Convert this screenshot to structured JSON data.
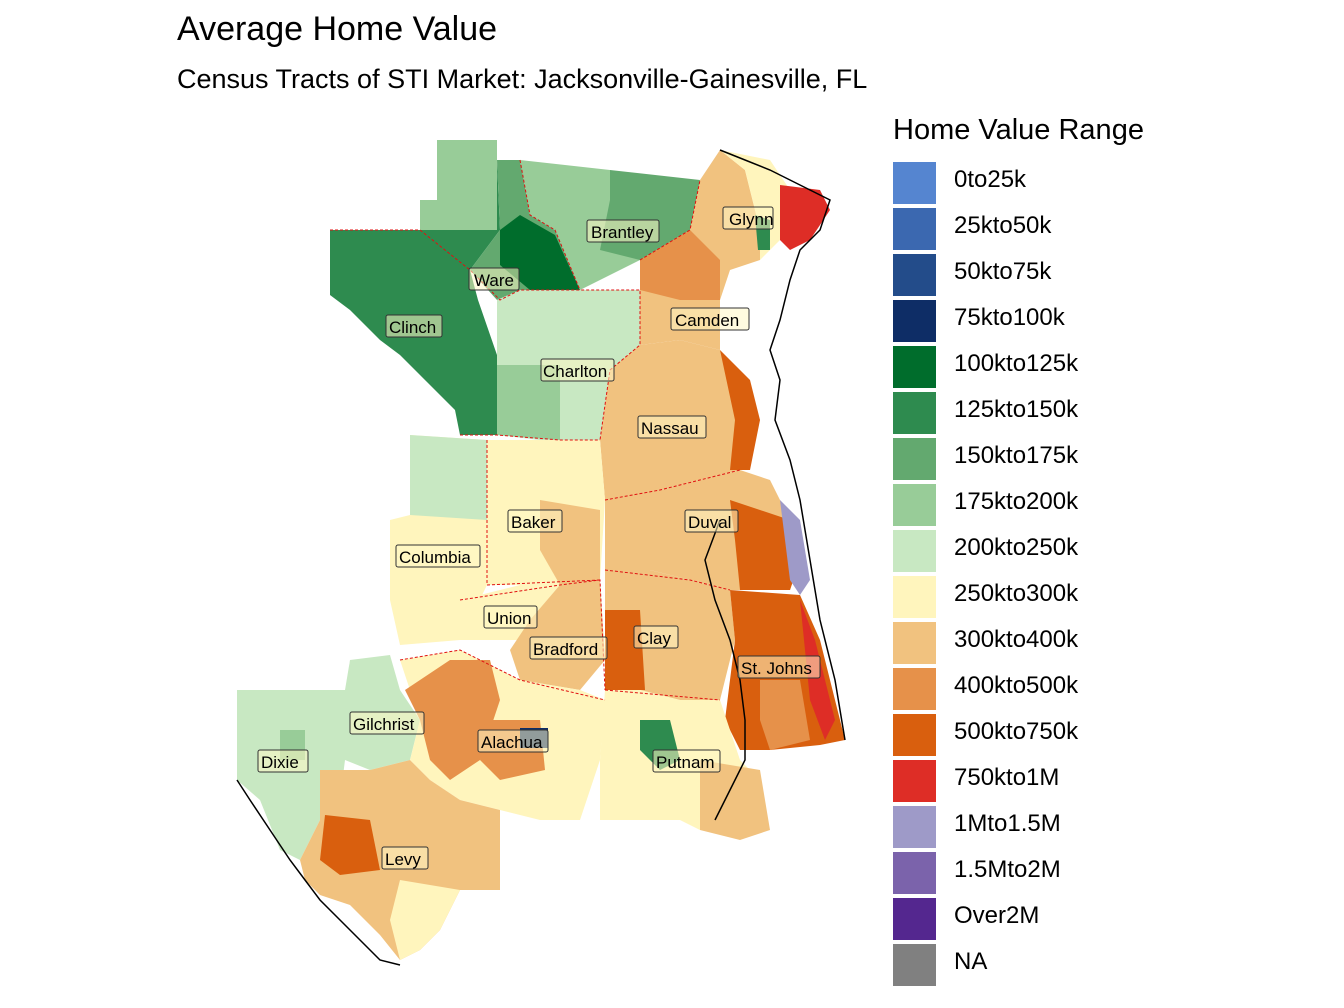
{
  "title": "Average Home Value",
  "subtitle": "Census Tracts of STI Market: Jacksonville-Gainesville, FL",
  "legend": {
    "title": "Home Value Range",
    "items": [
      {
        "label": "0to25k",
        "color": "#5585d0"
      },
      {
        "label": "25kto50k",
        "color": "#3b68b0"
      },
      {
        "label": "50kto75k",
        "color": "#234c8a"
      },
      {
        "label": "75kto100k",
        "color": "#0e2d66"
      },
      {
        "label": "100kto125k",
        "color": "#006d2c"
      },
      {
        "label": "125kto150k",
        "color": "#2e8b4f"
      },
      {
        "label": "150kto175k",
        "color": "#63a96f"
      },
      {
        "label": "175kto200k",
        "color": "#98cc98"
      },
      {
        "label": "200kto250k",
        "color": "#c8e8c2"
      },
      {
        "label": "250kto300k",
        "color": "#fff5bd"
      },
      {
        "label": "300kto400k",
        "color": "#f1c27f"
      },
      {
        "label": "400kto500k",
        "color": "#e6914a"
      },
      {
        "label": "500kto750k",
        "color": "#d95f0e"
      },
      {
        "label": "750kto1M",
        "color": "#de2d26"
      },
      {
        "label": "1Mto1.5M",
        "color": "#9e9ac8"
      },
      {
        "label": "1.5Mto2M",
        "color": "#7b63ab"
      },
      {
        "label": "Over2M",
        "color": "#54278f"
      },
      {
        "label": "NA",
        "color": "#808080"
      }
    ]
  },
  "counties": [
    {
      "name": "Glynn"
    },
    {
      "name": "Brantley"
    },
    {
      "name": "Ware"
    },
    {
      "name": "Camden"
    },
    {
      "name": "Clinch"
    },
    {
      "name": "Charlton"
    },
    {
      "name": "Nassau"
    },
    {
      "name": "Baker"
    },
    {
      "name": "Duval"
    },
    {
      "name": "Columbia"
    },
    {
      "name": "Union"
    },
    {
      "name": "Bradford"
    },
    {
      "name": "Clay"
    },
    {
      "name": "St. Johns"
    },
    {
      "name": "Gilchrist"
    },
    {
      "name": "Alachua"
    },
    {
      "name": "Dixie"
    },
    {
      "name": "Putnam"
    },
    {
      "name": "Levy"
    }
  ]
}
